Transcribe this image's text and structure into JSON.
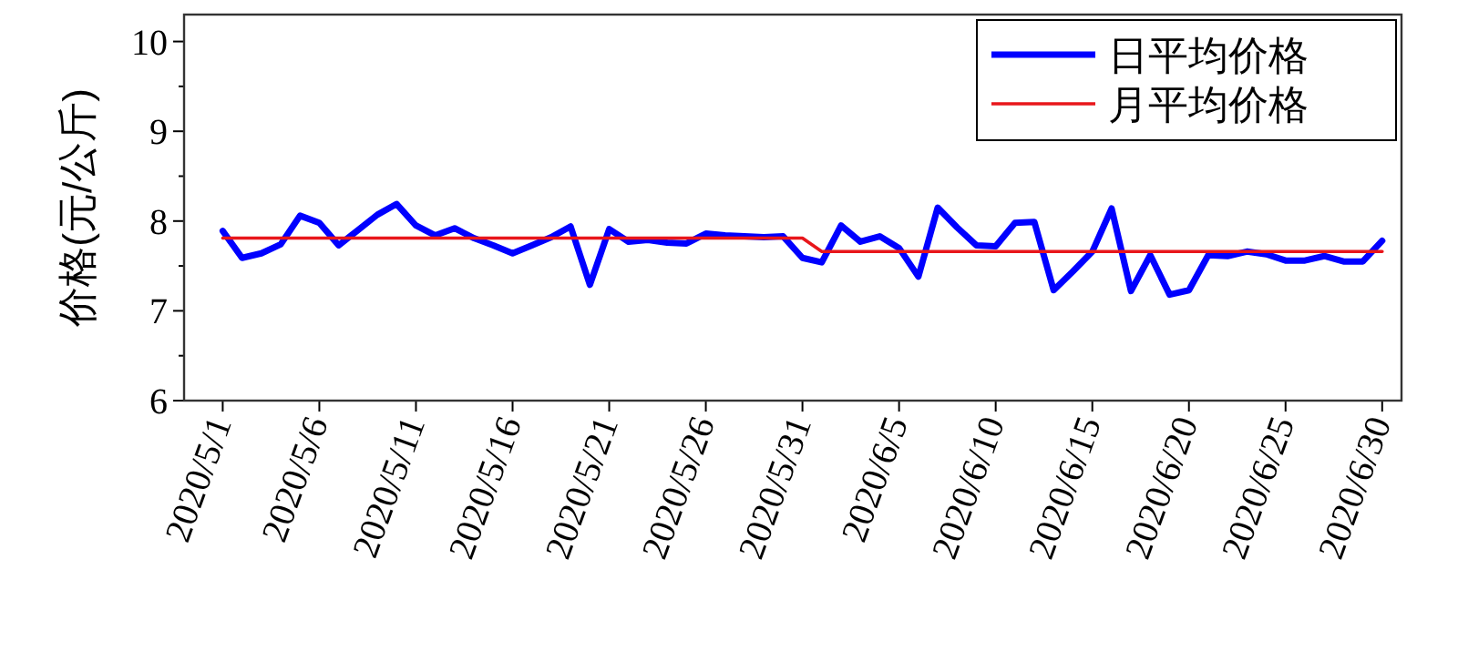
{
  "chart_data": {
    "type": "line",
    "ylabel": "价格(元/公斤)",
    "legend": "top right",
    "x": [
      "2020-05-01",
      "2020-05-02",
      "2020-05-03",
      "2020-05-04",
      "2020-05-05",
      "2020-05-06",
      "2020-05-07",
      "2020-05-08",
      "2020-05-09",
      "2020-05-10",
      "2020-05-11",
      "2020-05-12",
      "2020-05-13",
      "2020-05-14",
      "2020-05-15",
      "2020-05-16",
      "2020-05-17",
      "2020-05-18",
      "2020-05-19",
      "2020-05-20",
      "2020-05-21",
      "2020-05-22",
      "2020-05-23",
      "2020-05-24",
      "2020-05-25",
      "2020-05-26",
      "2020-05-27",
      "2020-05-28",
      "2020-05-29",
      "2020-05-30",
      "2020-05-31",
      "2020-06-01",
      "2020-06-02",
      "2020-06-03",
      "2020-06-04",
      "2020-06-05",
      "2020-06-06",
      "2020-06-07",
      "2020-06-08",
      "2020-06-09",
      "2020-06-10",
      "2020-06-11",
      "2020-06-12",
      "2020-06-13",
      "2020-06-14",
      "2020-06-15",
      "2020-06-16",
      "2020-06-17",
      "2020-06-18",
      "2020-06-19",
      "2020-06-20",
      "2020-06-21",
      "2020-06-22",
      "2020-06-23",
      "2020-06-24",
      "2020-06-25",
      "2020-06-26",
      "2020-06-27",
      "2020-06-28",
      "2020-06-29",
      "2020-06-30"
    ],
    "series": [
      {
        "name": "日平均价格",
        "color": "#0000ff",
        "values": [
          7.89,
          7.59,
          7.64,
          7.74,
          8.06,
          7.98,
          7.73,
          7.9,
          8.07,
          8.19,
          7.95,
          7.84,
          7.92,
          7.81,
          7.73,
          7.64,
          7.73,
          7.82,
          7.94,
          7.29,
          7.91,
          7.77,
          7.79,
          7.76,
          7.75,
          7.86,
          7.84,
          7.83,
          7.82,
          7.83,
          7.59,
          7.54,
          7.95,
          7.77,
          7.83,
          7.7,
          7.38,
          8.15,
          7.93,
          7.73,
          7.72,
          7.98,
          7.99,
          7.23,
          7.44,
          7.66,
          8.14,
          7.22,
          7.62,
          7.18,
          7.23,
          7.62,
          7.61,
          7.66,
          7.63,
          7.56,
          7.56,
          7.61,
          7.55,
          7.55,
          7.78
        ]
      },
      {
        "name": "月平均价格",
        "color": "#e8161b",
        "x": [
          "2020-05-01",
          "2020-05-31",
          "2020-06-01",
          "2020-06-30"
        ],
        "values": [
          7.81,
          7.81,
          7.66,
          7.66
        ]
      }
    ],
    "xlim": [
      "2020-04-29",
      "2020-07-01"
    ],
    "xticks": [
      {
        "value": "2020-05-01",
        "label": "2020/5/1"
      },
      {
        "value": "2020-05-06",
        "label": "2020/5/6"
      },
      {
        "value": "2020-05-11",
        "label": "2020/5/11"
      },
      {
        "value": "2020-05-16",
        "label": "2020/5/16"
      },
      {
        "value": "2020-05-21",
        "label": "2020/5/21"
      },
      {
        "value": "2020-05-26",
        "label": "2020/5/26"
      },
      {
        "value": "2020-05-31",
        "label": "2020/5/31"
      },
      {
        "value": "2020-06-05",
        "label": "2020/6/5"
      },
      {
        "value": "2020-06-10",
        "label": "2020/6/10"
      },
      {
        "value": "2020-06-15",
        "label": "2020/6/15"
      },
      {
        "value": "2020-06-20",
        "label": "2020/6/20"
      },
      {
        "value": "2020-06-25",
        "label": "2020/6/25"
      },
      {
        "value": "2020-06-30",
        "label": "2020/6/30"
      }
    ],
    "ylim": [
      6,
      10.3
    ],
    "yticks": [
      6,
      {
        "value": 6.5,
        "label": null
      },
      7,
      {
        "value": 7.5,
        "label": null
      },
      8,
      {
        "value": 8.5,
        "label": null
      },
      9,
      {
        "value": 9.5,
        "label": null
      },
      10
    ]
  }
}
